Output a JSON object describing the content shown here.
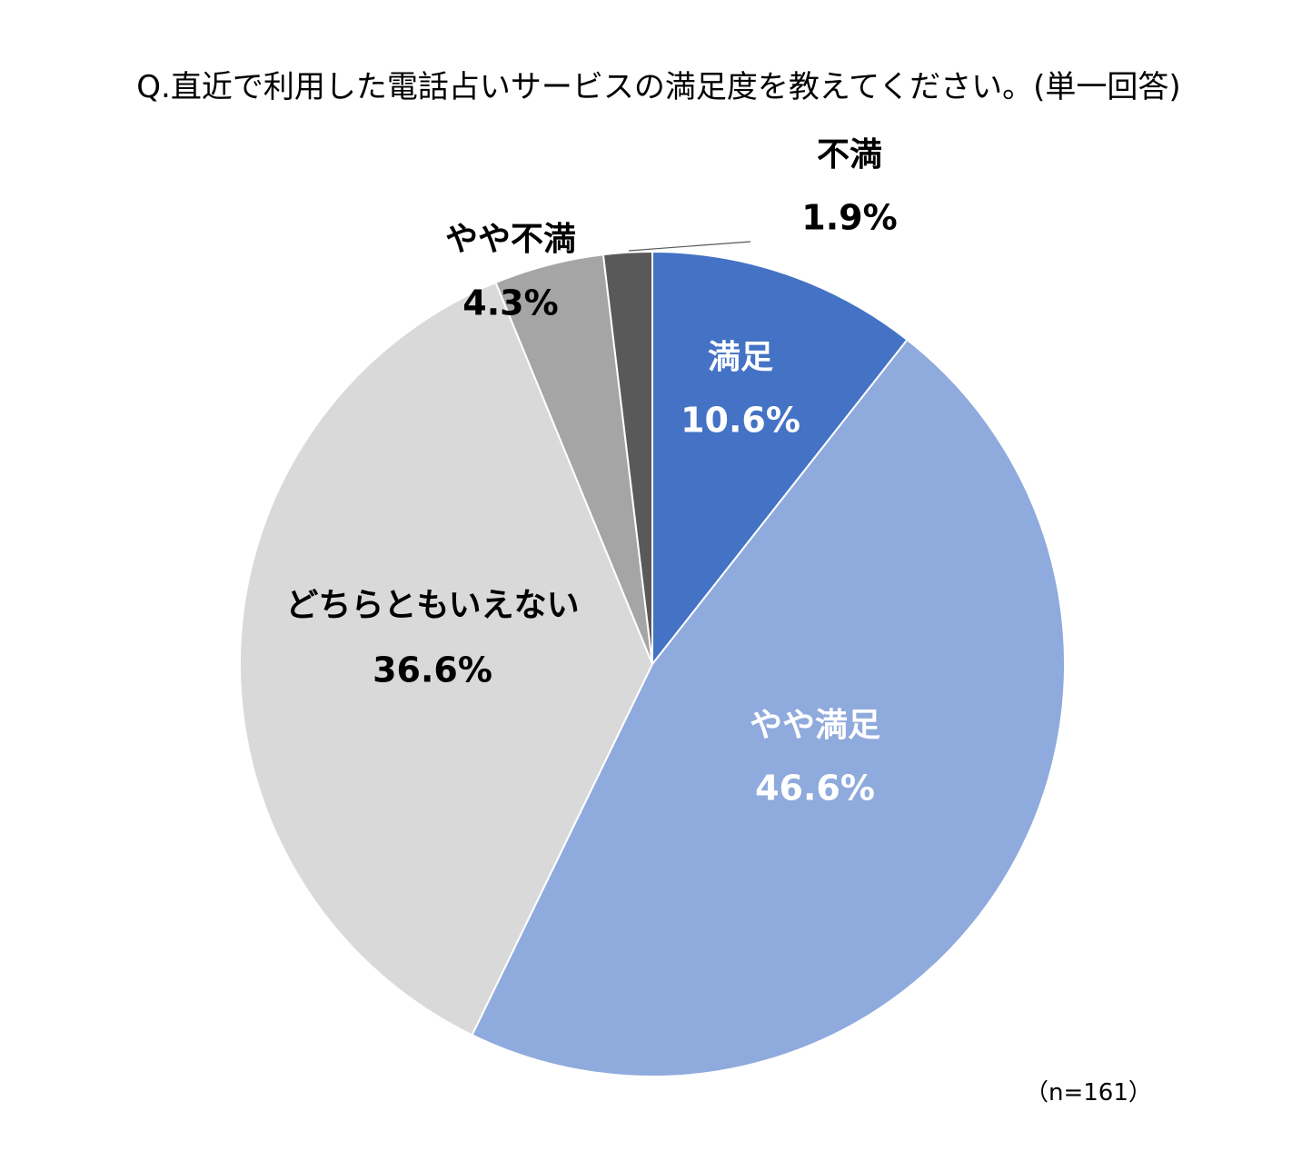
{
  "chart_data": {
    "type": "pie",
    "title": "Q.直近で利用した電話占いサービスの満足度を教えてください。(単一回答)",
    "note": "（n=161）",
    "start_angle": "12 o'clock",
    "direction": "clockwise",
    "slices": [
      {
        "label": "満足",
        "value": 10.6,
        "value_label": "10.6%",
        "color": "#4472C4",
        "text_color": "#FFFFFF"
      },
      {
        "label": "やや満足",
        "value": 46.6,
        "value_label": "46.6%",
        "color": "#8FAADC",
        "text_color": "#FFFFFF"
      },
      {
        "label": "どちらともいえない",
        "value": 36.6,
        "value_label": "36.6%",
        "color": "#D9D9D9",
        "text_color": "#000000"
      },
      {
        "label": "やや不満",
        "value": 4.3,
        "value_label": "4.3%",
        "color": "#A5A5A5",
        "text_color": "#000000"
      },
      {
        "label": "不満",
        "value": 1.9,
        "value_label": "1.9%",
        "color": "#595959",
        "text_color": "#000000"
      }
    ]
  }
}
